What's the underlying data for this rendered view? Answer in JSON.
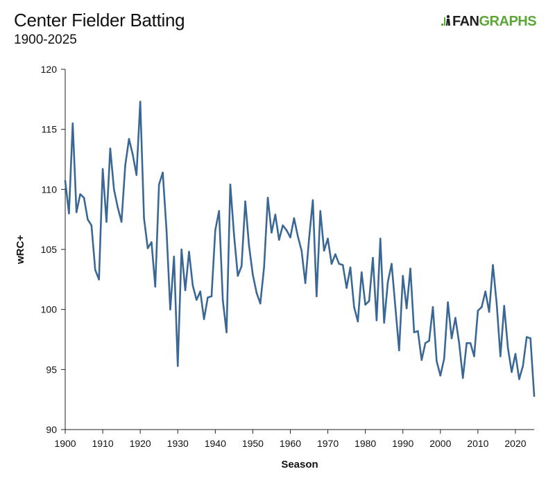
{
  "header": {
    "title": "Center Fielder Batting",
    "subtitle": "1900-2025",
    "logo_fan": "FAN",
    "logo_graphs": "GRAPHS"
  },
  "colors": {
    "line": "#3a6794",
    "axis": "#222222",
    "logo_green": "#5aa637"
  },
  "chart_data": {
    "type": "line",
    "title": "Center Fielder Batting",
    "subtitle": "1900-2025",
    "xlabel": "Season",
    "ylabel": "wRC+",
    "xlim": [
      1900,
      2025
    ],
    "ylim": [
      90,
      120
    ],
    "x_ticks": [
      1900,
      1910,
      1920,
      1930,
      1940,
      1950,
      1960,
      1970,
      1980,
      1990,
      2000,
      2010,
      2020
    ],
    "y_ticks": [
      90,
      95,
      100,
      105,
      110,
      115,
      120
    ],
    "grid": false,
    "series": [
      {
        "x": [
          1900,
          1901,
          1902,
          1903,
          1904,
          1905,
          1906,
          1907,
          1908,
          1909,
          1910,
          1911,
          1912,
          1913,
          1914,
          1915,
          1916,
          1917,
          1918,
          1919,
          1920,
          1921,
          1922,
          1923,
          1924,
          1925,
          1926,
          1927,
          1928,
          1929,
          1930,
          1931,
          1932,
          1933,
          1934,
          1935,
          1936,
          1937,
          1938,
          1939,
          1940,
          1941,
          1942,
          1943,
          1944,
          1945,
          1946,
          1947,
          1948,
          1949,
          1950,
          1951,
          1952,
          1953,
          1954,
          1955,
          1956,
          1957,
          1958,
          1959,
          1960,
          1961,
          1962,
          1963,
          1964,
          1965,
          1966,
          1967,
          1968,
          1969,
          1970,
          1971,
          1972,
          1973,
          1974,
          1975,
          1976,
          1977,
          1978,
          1979,
          1980,
          1981,
          1982,
          1983,
          1984,
          1985,
          1986,
          1987,
          1988,
          1989,
          1990,
          1991,
          1992,
          1993,
          1994,
          1995,
          1996,
          1997,
          1998,
          1999,
          2000,
          2001,
          2002,
          2003,
          2004,
          2005,
          2006,
          2007,
          2008,
          2009,
          2010,
          2011,
          2012,
          2013,
          2014,
          2015,
          2016,
          2017,
          2018,
          2019,
          2020,
          2021,
          2022,
          2023,
          2024,
          2025
        ],
        "y": [
          110.7,
          108.0,
          115.5,
          108.1,
          109.6,
          109.3,
          107.5,
          107.0,
          103.3,
          102.5,
          111.7,
          107.3,
          113.4,
          110.0,
          108.5,
          107.3,
          112.0,
          114.2,
          112.9,
          111.2,
          117.3,
          107.6,
          105.1,
          105.6,
          101.9,
          110.4,
          111.4,
          106.6,
          100.0,
          104.4,
          95.3,
          105.0,
          101.6,
          104.8,
          102.0,
          100.8,
          101.5,
          99.2,
          101.0,
          101.1,
          106.6,
          108.2,
          100.8,
          98.1,
          110.4,
          106.2,
          102.8,
          103.6,
          109.0,
          105.3,
          102.9,
          101.4,
          100.5,
          103.5,
          109.3,
          106.4,
          107.9,
          105.8,
          107.0,
          106.6,
          106.0,
          107.6,
          106.1,
          104.9,
          102.2,
          105.9,
          109.1,
          101.1,
          108.2,
          104.9,
          105.9,
          103.8,
          104.6,
          103.8,
          103.7,
          101.8,
          103.5,
          100.2,
          99.0,
          103.1,
          100.4,
          100.7,
          104.3,
          99.1,
          105.9,
          98.9,
          102.3,
          103.8,
          100.2,
          96.6,
          102.8,
          100.1,
          103.4,
          98.1,
          98.2,
          95.8,
          97.2,
          97.4,
          100.2,
          95.7,
          94.5,
          95.9,
          100.6,
          97.6,
          99.3,
          97.2,
          94.3,
          97.2,
          97.2,
          96.1,
          99.9,
          100.2,
          101.5,
          99.8,
          103.7,
          100.5,
          96.1,
          100.3,
          96.8,
          94.8,
          96.3,
          94.2,
          95.3,
          97.7,
          97.6,
          92.8
        ]
      }
    ]
  }
}
